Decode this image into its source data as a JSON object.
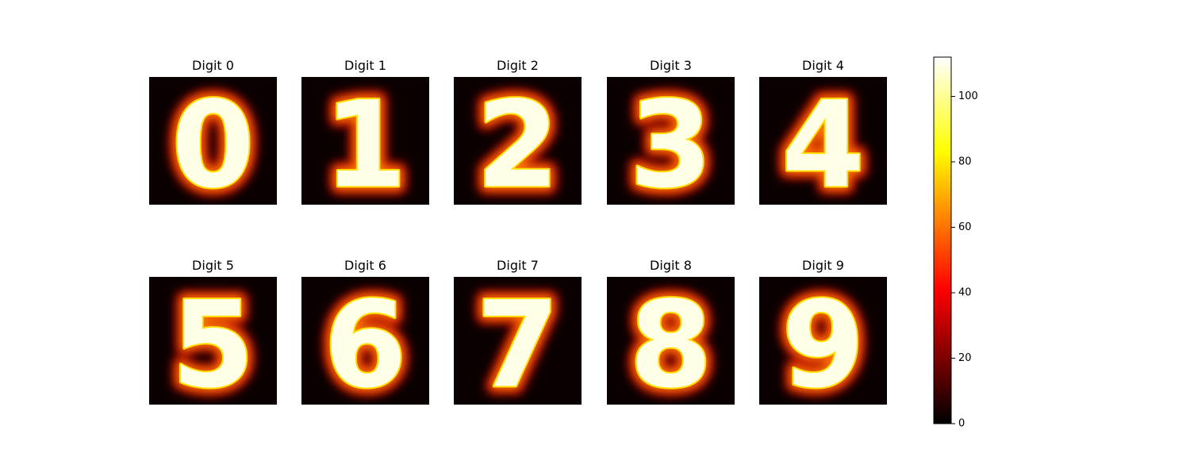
{
  "chart_data": {
    "type": "heatmap",
    "colormap": "hot",
    "grid": false,
    "panels": [
      {
        "title": "Digit 0",
        "digit": "0"
      },
      {
        "title": "Digit 1",
        "digit": "1"
      },
      {
        "title": "Digit 2",
        "digit": "2"
      },
      {
        "title": "Digit 3",
        "digit": "3"
      },
      {
        "title": "Digit 4",
        "digit": "4"
      },
      {
        "title": "Digit 5",
        "digit": "5"
      },
      {
        "title": "Digit 6",
        "digit": "6"
      },
      {
        "title": "Digit 7",
        "digit": "7"
      },
      {
        "title": "Digit 8",
        "digit": "8"
      },
      {
        "title": "Digit 9",
        "digit": "9"
      }
    ],
    "colorbar": {
      "range": [
        0,
        112
      ],
      "ticks": [
        0,
        20,
        40,
        60,
        80,
        100
      ],
      "tick_labels": [
        "0",
        "20",
        "40",
        "60",
        "80",
        "100"
      ]
    }
  }
}
